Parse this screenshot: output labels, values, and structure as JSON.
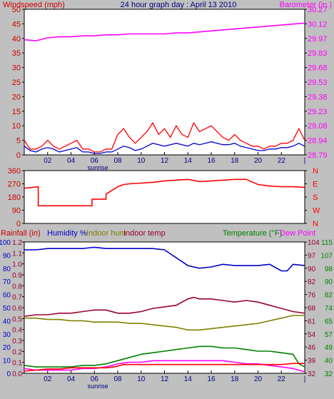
{
  "chart_data": [
    {
      "type": "line",
      "title": "24 hour graph day : April 13 2010",
      "left_axis_label": "Windspeed (mph)",
      "right_axis_label": "Barometer (in.)",
      "x_ticks": [
        "02",
        "04",
        "06",
        "08",
        "10",
        "12",
        "14",
        "16",
        "18",
        "20",
        "22",
        "|"
      ],
      "sunrise_label": "sunrise",
      "sunrise_hour": 6.3,
      "xlim": [
        0,
        24
      ],
      "left_ylim": [
        0,
        50
      ],
      "left_ticks": [
        "0",
        "5",
        "10",
        "15",
        "20",
        "25",
        "30",
        "35",
        "40",
        "45",
        "50"
      ],
      "right_ylim": [
        28.79,
        30.27
      ],
      "right_ticks": [
        "28.79",
        "28.94",
        "29.08",
        "29.23",
        "29.38",
        "29.53",
        "29.68",
        "29.83",
        "29.97",
        "30.12",
        "30.27"
      ],
      "series": [
        {
          "axis": "right",
          "color": "#ff00ff",
          "x": [
            0,
            1,
            2,
            3,
            4,
            5,
            6,
            7,
            8,
            9,
            10,
            11,
            12,
            13,
            14,
            15,
            16,
            17,
            18,
            19,
            20,
            21,
            22,
            23,
            24
          ],
          "values": [
            29.96,
            29.95,
            29.98,
            29.99,
            29.99,
            30.0,
            30.0,
            30.01,
            30.01,
            30.02,
            30.02,
            30.02,
            30.02,
            30.03,
            30.03,
            30.04,
            30.05,
            30.06,
            30.07,
            30.08,
            30.09,
            30.1,
            30.11,
            30.12,
            30.13
          ]
        },
        {
          "axis": "left",
          "color": "#0000cc",
          "x": [
            0,
            0.5,
            1,
            1.5,
            2,
            2.5,
            3,
            3.5,
            4,
            4.5,
            5,
            5.5,
            6,
            6.5,
            7,
            7.5,
            8,
            8.5,
            9,
            9.5,
            10,
            10.5,
            11,
            11.5,
            12,
            12.5,
            13,
            13.5,
            14,
            14.5,
            15,
            15.5,
            16,
            16.5,
            17,
            17.5,
            18,
            18.5,
            19,
            19.5,
            20,
            20.5,
            21,
            21.5,
            22,
            22.5,
            23,
            23.5,
            24
          ],
          "values": [
            3,
            1.5,
            1,
            2,
            2.5,
            2,
            1,
            1.5,
            2,
            2.5,
            1,
            1,
            0.5,
            0.5,
            1,
            1,
            2,
            3,
            2.5,
            1.5,
            2,
            3,
            4,
            3.5,
            3,
            3.5,
            4,
            3.5,
            3,
            4,
            3.5,
            4,
            4.5,
            4,
            3.5,
            3.5,
            4,
            3,
            2.5,
            2,
            1.5,
            1.5,
            2,
            2,
            2.5,
            2.5,
            3,
            4,
            3
          ]
        },
        {
          "axis": "left",
          "color": "#ff0000",
          "x": [
            0,
            0.5,
            1,
            1.5,
            2,
            2.5,
            3,
            3.5,
            4,
            4.5,
            5,
            5.5,
            6,
            6.5,
            7,
            7.5,
            8,
            8.5,
            9,
            9.5,
            10,
            10.5,
            11,
            11.5,
            12,
            12.5,
            13,
            13.5,
            14,
            14.5,
            15,
            15.5,
            16,
            16.5,
            17,
            17.5,
            18,
            18.5,
            19,
            19.5,
            20,
            20.5,
            21,
            21.5,
            22,
            22.5,
            23,
            23.5,
            24
          ],
          "values": [
            5,
            2,
            2,
            3,
            5,
            3,
            2,
            3,
            4,
            5,
            2,
            2,
            1,
            1,
            2,
            2,
            7,
            9,
            6,
            4,
            6,
            8,
            11,
            7,
            9,
            6,
            10,
            7,
            6,
            11,
            8,
            9,
            10,
            8,
            6,
            5,
            7,
            5,
            4,
            3,
            3,
            2,
            3,
            3,
            4,
            4,
            5,
            9,
            5
          ]
        }
      ]
    },
    {
      "type": "line",
      "left_ylim": [
        0,
        360
      ],
      "left_ticks": [
        "0",
        "90",
        "180",
        "270",
        "360"
      ],
      "right_ticks": [
        "N",
        "W",
        "S",
        "E",
        "N"
      ],
      "series": [
        {
          "color": "#ff0000",
          "x": [
            0,
            1.2,
            1.2,
            5.8,
            5.8,
            7.0,
            7.0,
            8.0,
            8.5,
            9,
            10,
            11,
            12,
            13,
            14,
            15,
            16,
            17,
            18,
            19,
            20,
            21,
            22,
            23,
            24
          ],
          "values": [
            240,
            250,
            120,
            120,
            165,
            165,
            200,
            250,
            265,
            270,
            275,
            280,
            290,
            295,
            300,
            285,
            290,
            295,
            300,
            300,
            265,
            255,
            250,
            250,
            245
          ]
        }
      ]
    },
    {
      "type": "line",
      "left_axis_label": "Rainfall (in)",
      "humidity_label": "Humidity %",
      "indoor_hum_label": "Indoor hum",
      "indoor_temp_label": "Indoor temp",
      "temperature_label": "Temperature (°F)",
      "dew_point_label": "Dew Point",
      "x_ticks": [
        "02",
        "04",
        "06",
        "08",
        "10",
        "12",
        "14",
        "16",
        "18",
        "20",
        "22",
        "|"
      ],
      "sunrise_label": "sunrise",
      "rain_ylim": [
        0,
        1.2
      ],
      "rain_ticks": [
        "0.0",
        "0.1",
        "0.2",
        "0.3",
        "0.4",
        "0.5",
        "0.6",
        "0.7",
        "0.8",
        "0.9",
        "1.0",
        "1.1",
        "1.2"
      ],
      "humidity_ylim": [
        0,
        100
      ],
      "humidity_ticks": [
        "0",
        "10",
        "20",
        "30",
        "40",
        "50",
        "60",
        "70",
        "80",
        "90",
        "100"
      ],
      "temp_ylim": [
        32,
        115
      ],
      "temp_ticks_right": [
        "32",
        "39",
        "46",
        "54",
        "61",
        "68",
        "76",
        "82",
        "90",
        "97",
        "104"
      ],
      "temp_ticks_far_right": [
        "32",
        "40",
        "49",
        "57",
        "65",
        "74",
        "82",
        "90",
        "98",
        "107",
        "115"
      ],
      "series": [
        {
          "name": "Humidity %",
          "color": "#0000cc",
          "x": [
            0,
            1,
            2,
            3,
            4,
            5,
            6,
            7,
            8,
            9,
            10,
            11,
            12,
            12.5,
            13,
            13.5,
            14,
            15,
            16,
            17,
            18,
            19,
            20,
            21,
            22,
            22.5,
            23,
            24
          ],
          "values": [
            94,
            94,
            95,
            95,
            95,
            95,
            96,
            95,
            95,
            95,
            95,
            95,
            94,
            91,
            88,
            85,
            82,
            80,
            81,
            83,
            82,
            82,
            82,
            83,
            78,
            78,
            83,
            82
          ]
        },
        {
          "name": "Indoor hum",
          "color": "#808000",
          "x": [
            0,
            1,
            2,
            3,
            4,
            5,
            6,
            7,
            8,
            9,
            10,
            11,
            12,
            13,
            14,
            15,
            16,
            17,
            18,
            19,
            20,
            21,
            22,
            23,
            24
          ],
          "values": [
            42,
            42,
            41,
            41,
            40,
            40,
            39,
            39,
            39,
            38,
            38,
            37,
            36,
            35,
            33,
            33,
            34,
            35,
            36,
            37,
            38,
            40,
            42,
            44,
            44
          ]
        },
        {
          "name": "Indoor temp",
          "color": "#990033",
          "x": [
            0,
            1,
            2,
            3,
            4,
            5,
            6,
            7,
            8,
            9,
            10,
            11,
            12,
            13,
            14,
            14.5,
            15,
            16,
            17,
            18,
            19,
            20,
            21,
            22,
            23,
            24
          ],
          "values": [
            68,
            69,
            69,
            70,
            70,
            71,
            72,
            72,
            70,
            70,
            71,
            73,
            74,
            75,
            79,
            80,
            79,
            79,
            78,
            77,
            78,
            77,
            75,
            73,
            71,
            70
          ]
        },
        {
          "name": "Temperature (°F)",
          "color": "#008000",
          "x": [
            0,
            1,
            2,
            3,
            4,
            5,
            6,
            7,
            8,
            9,
            10,
            11,
            12,
            13,
            14,
            15,
            16,
            17,
            18,
            19,
            20,
            21,
            22,
            23,
            23.5,
            24
          ],
          "values": [
            37,
            36,
            36,
            36,
            36,
            37,
            37,
            38,
            40,
            42,
            44,
            45,
            46,
            47,
            48,
            49,
            49,
            48,
            48,
            47,
            46,
            46,
            45,
            44,
            38,
            36
          ]
        },
        {
          "name": "Dew Point",
          "color": "#ff00ff",
          "x": [
            0,
            1,
            2,
            3,
            4,
            5,
            6,
            7,
            8,
            9,
            10,
            11,
            12,
            13,
            14,
            15,
            16,
            17,
            18,
            19,
            20,
            21,
            22,
            23,
            23.5,
            24
          ],
          "values": [
            35,
            34,
            34,
            34,
            34,
            35,
            35,
            36,
            38,
            39,
            39,
            40,
            40,
            40,
            40,
            40,
            40,
            40,
            39,
            38,
            38,
            37,
            36,
            35,
            34,
            33
          ]
        },
        {
          "name": "Rainfall (in)",
          "color": "#ff0000",
          "x": [
            0,
            1,
            2,
            3,
            4,
            5,
            6,
            7,
            7.8,
            8.5,
            9,
            10,
            11,
            12,
            13,
            14,
            15,
            16,
            17,
            18,
            19,
            20,
            21,
            22,
            23,
            24
          ],
          "values": [
            0.02,
            0.03,
            0.04,
            0.04,
            0.05,
            0.05,
            0.05,
            0.05,
            0.06,
            0.08,
            0.08,
            0.08,
            0.08,
            0.08,
            0.08,
            0.08,
            0.08,
            0.08,
            0.08,
            0.08,
            0.08,
            0.08,
            0.08,
            0.08,
            0.09,
            0.09
          ]
        }
      ]
    }
  ]
}
